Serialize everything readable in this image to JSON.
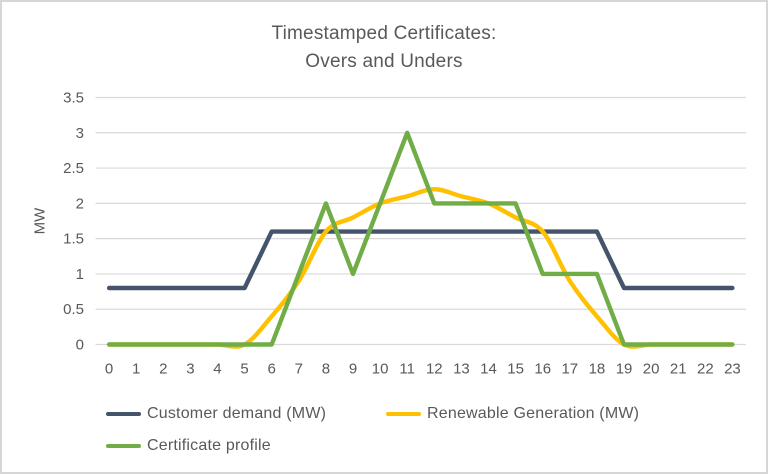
{
  "title": {
    "line1": "Timestamped Certificates:",
    "line2": "Overs and Unders"
  },
  "colors": {
    "background": "#FFFFFF",
    "frame_border": "#D6D6D6",
    "gridline": "#D9D9D9",
    "text": "#595959",
    "customer_demand": "#44546A",
    "renewable_generation": "#FFC000",
    "certificate_profile": "#70AD47"
  },
  "chart_data": {
    "type": "line",
    "title": "Timestamped Certificates: Overs and Unders",
    "xlabel": "",
    "ylabel": "MW",
    "ylim": [
      0,
      3.5
    ],
    "ytick_step": 0.5,
    "yticks": [
      "0",
      "0.5",
      "1",
      "1.5",
      "2",
      "2.5",
      "3",
      "3.5"
    ],
    "x": [
      0,
      1,
      2,
      3,
      4,
      5,
      6,
      7,
      8,
      9,
      10,
      11,
      12,
      13,
      14,
      15,
      16,
      17,
      18,
      19,
      20,
      21,
      22,
      23
    ],
    "grid": "horizontal",
    "legend_position": "bottom",
    "series": [
      {
        "key": "customer-demand",
        "name": "Customer demand (MW)",
        "color": "#44546A",
        "smooth": false,
        "values": [
          0.8,
          0.8,
          0.8,
          0.8,
          0.8,
          0.8,
          1.6,
          1.6,
          1.6,
          1.6,
          1.6,
          1.6,
          1.6,
          1.6,
          1.6,
          1.6,
          1.6,
          1.6,
          1.6,
          0.8,
          0.8,
          0.8,
          0.8,
          0.8
        ]
      },
      {
        "key": "renewable-generation",
        "name": "Renewable Generation (MW)",
        "color": "#FFC000",
        "smooth": true,
        "values": [
          0,
          0,
          0,
          0,
          0,
          0,
          0.4,
          0.9,
          1.6,
          1.8,
          2.0,
          2.1,
          2.2,
          2.1,
          2.0,
          1.8,
          1.6,
          0.9,
          0.4,
          0,
          0,
          0,
          0,
          0
        ]
      },
      {
        "key": "certificate-profile",
        "name": "Certificate profile",
        "color": "#70AD47",
        "smooth": false,
        "values": [
          0,
          0,
          0,
          0,
          0,
          0,
          0,
          1,
          2,
          1,
          2,
          3,
          2,
          2,
          2,
          2,
          1,
          1,
          1,
          0,
          0,
          0,
          0,
          0
        ]
      }
    ]
  }
}
